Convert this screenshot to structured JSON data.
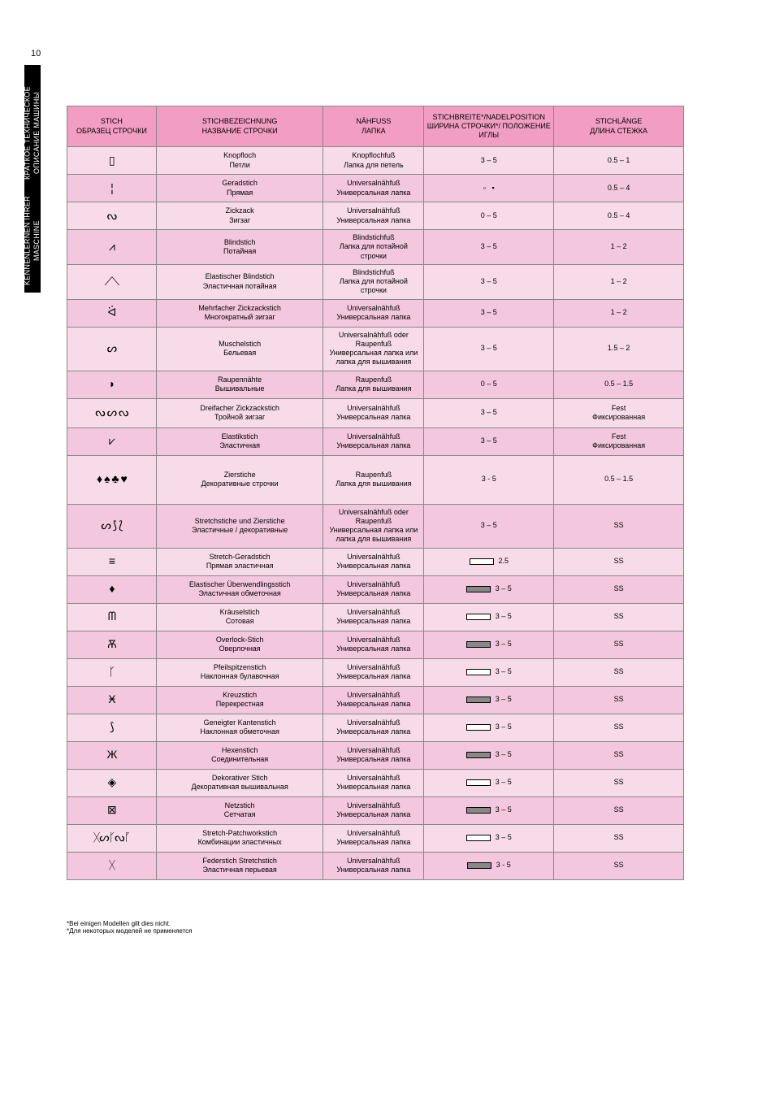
{
  "document": {
    "page_number": "10",
    "sidebar_label_de": "KENNENLERNEN IHRER MASCHINE",
    "sidebar_label_ru": "КРАТКОЕ ТЕХНИЧЕСКОЕ ОПИСАНИЕ МАШИНЫ"
  },
  "colors": {
    "header_bg": "#f29ec3",
    "row_dark": "#f3c8de",
    "row_light": "#f7dbe8",
    "border": "#888888",
    "sidebar_bg": "#000000",
    "sidebar_text": "#ffffff"
  },
  "table": {
    "headers": {
      "col1_de": "STICH",
      "col1_ru": "ОБРАЗЕЦ СТРОЧКИ",
      "col2_de": "STICHBEZEICHNUNG",
      "col2_ru": "НАЗВАНИЕ СТРОЧКИ",
      "col3_de": "NÄHFUSS",
      "col3_ru": "ЛАПКА",
      "col4_de": "STICHBREITE*/NADELPOSITION",
      "col4_ru": "ШИРИНА СТРОЧКИ*/ ПОЛОЖЕНИЕ ИГЛЫ",
      "col5_de": "STICHLÄNGE",
      "col5_ru": "ДЛИНА СТЕЖКА"
    },
    "rows": [
      {
        "icon": "▯",
        "name_de": "Knopfloch",
        "name_ru": "Петли",
        "foot_de": "Knopflochfuß",
        "foot_ru": "Лапка для петель",
        "width": "3 – 5",
        "length": "0.5 – 1",
        "rowClass": "row-odd",
        "h": "cell-sm"
      },
      {
        "icon": "¦",
        "name_de": "Geradstich",
        "name_ru": "Прямая",
        "foot_de": "Universalnähfuß",
        "foot_ru": "Универсальная лапка",
        "width_special": "left_center",
        "length": "0.5 – 4",
        "rowClass": "row-even",
        "h": "cell-sm"
      },
      {
        "icon": "ᔓ",
        "name_de": "Zickzack",
        "name_ru": "Зигзаг",
        "foot_de": "Universalnähfuß",
        "foot_ru": "Универсальная лапка",
        "width": "0 – 5",
        "length": "0.5 – 4",
        "rowClass": "row-odd",
        "h": "cell-sm"
      },
      {
        "icon": "⩘",
        "name_de": "Blindstich",
        "name_ru": "Потайная",
        "foot_de": "Blindstichfuß",
        "foot_ru": "Лапка для потайной строчки",
        "width": "3 – 5",
        "length": "1 – 2",
        "rowClass": "row-even",
        "h": "cell-sm"
      },
      {
        "icon": "⟋⟍",
        "name_de": "Elastischer Blindstich",
        "name_ru": "Эластичная потайная",
        "foot_de": "Blindstichfuß",
        "foot_ru": "Лапка для потайной строчки",
        "width": "3 – 5",
        "length": "1 – 2",
        "rowClass": "row-odd",
        "h": "cell-sm"
      },
      {
        "icon": "ᐛ",
        "name_de": "Mehrfacher Zickzackstich",
        "name_ru": "Многократный зигзаг",
        "foot_de": "Universalnähfuß",
        "foot_ru": "Универсальная лапка",
        "width": "3 – 5",
        "length": "1 – 2",
        "rowClass": "row-even",
        "h": "cell-sm"
      },
      {
        "icon": "ᔕ",
        "name_de": "Muschelstich",
        "name_ru": "Бельевая",
        "foot_de": "Universalnähfuß oder Raupenfuß",
        "foot_ru": "Универсальная лапка или лапка для вышивания",
        "width": "3 – 5",
        "length": "1.5 – 2",
        "rowClass": "row-odd",
        "h": "cell-sm"
      },
      {
        "icon": "◗",
        "name_de": "Raupennähte",
        "name_ru": "Вышивальные",
        "foot_de": "Raupenfuß",
        "foot_ru": "Лапка для вышивания",
        "width": "0 – 5",
        "length": "0.5 – 1.5",
        "rowClass": "row-even",
        "h": "cell-sm"
      },
      {
        "icon": "ᔓ ᔕ ᔓ",
        "name_de": "Dreifacher Zickzackstich",
        "name_ru": "Тройной зигзаг",
        "foot_de": "Universalnähfuß",
        "foot_ru": "Универсальная лапка",
        "width": "3 – 5",
        "length": "Fest",
        "length_ru": "Фиксированная",
        "rowClass": "row-odd",
        "h": "cell-med"
      },
      {
        "icon": "⩗",
        "name_de": "Elastikstich",
        "name_ru": "Эластичная",
        "foot_de": "Universalnähfuß",
        "foot_ru": "Универсальная лапка",
        "width": "3 – 5",
        "length": "Fest",
        "length_ru": "Фиксированная",
        "rowClass": "row-even",
        "h": "cell-sm"
      },
      {
        "icon": "♦ ♠ ♣ ♥",
        "name_de": "Zierstiche",
        "name_ru": "Декоративные строчки",
        "foot_de": "Raupenfuß",
        "foot_ru": "Лапка для вышивания",
        "width": "3 - 5",
        "length": "0.5 – 1.5",
        "rowClass": "row-odd",
        "h": "cell-big"
      },
      {
        "icon": "ᔕ ⟆ ⟅",
        "name_de": "Stretchstiche und Zierstiche",
        "name_ru": "Эластичные / декоративные",
        "foot_de": "Universalnähfuß oder Raupenfuß",
        "foot_ru": "Универсальная лапка или лапка для вышивания",
        "width": "3 – 5",
        "length": "SS",
        "length_ru": "",
        "rowClass": "row-even",
        "h": "cell-med"
      },
      {
        "icon": "≡",
        "name_de": "Stretch-Geradstich",
        "name_ru": "Прямая эластичная",
        "foot_de": "Universalnähfuß",
        "foot_ru": "Универсальная лапка",
        "width_box": true,
        "width": "2.5",
        "length": "SS",
        "length_ru": "",
        "rowClass": "row-odd",
        "h": "cell-sm"
      },
      {
        "icon": "♦",
        "name_de": "Elastischer Überwendlingsstich",
        "name_ru": "Эластичная обметочная",
        "foot_de": "Universalnähfuß",
        "foot_ru": "Универсальная лапка",
        "width_box": true,
        "boxDark": true,
        "width": "3 – 5",
        "length": "SS",
        "rowClass": "row-even",
        "h": "cell-sm"
      },
      {
        "icon": "ᗰ",
        "name_de": "Kräuselstich",
        "name_ru": "Сотовая",
        "foot_de": "Universalnähfuß",
        "foot_ru": "Универсальная лапка",
        "width_box": true,
        "width": "3 – 5",
        "length": "SS",
        "rowClass": "row-odd",
        "h": "cell-sm"
      },
      {
        "icon": "Ѫ",
        "name_de": "Overlock-Stich",
        "name_ru": "Оверлочная",
        "foot_de": "Universalnähfuß",
        "foot_ru": "Универсальная лапка",
        "width_box": true,
        "boxDark": true,
        "width": "3 – 5",
        "length": "SS",
        "rowClass": "row-even",
        "h": "cell-sm"
      },
      {
        "icon": "ᚴ",
        "name_de": "Pfeilspitzenstich",
        "name_ru": "Наклонная булавочная",
        "foot_de": "Universalnähfuß",
        "foot_ru": "Универсальная лапка",
        "width_box": true,
        "width": "3 – 5",
        "length": "SS",
        "rowClass": "row-odd",
        "h": "cell-sm"
      },
      {
        "icon": "Ӿ",
        "name_de": "Kreuzstich",
        "name_ru": "Перекрестная",
        "foot_de": "Universalnähfuß",
        "foot_ru": "Универсальная лапка",
        "width_box": true,
        "boxDark": true,
        "width": "3 – 5",
        "length": "SS",
        "rowClass": "row-even",
        "h": "cell-sm"
      },
      {
        "icon": "⟆",
        "name_de": "Geneigter Kantenstich",
        "name_ru": "Наклонная обметочная",
        "foot_de": "Universalnähfuß",
        "foot_ru": "Универсальная лапка",
        "width_box": true,
        "width": "3 – 5",
        "length": "SS",
        "rowClass": "row-odd",
        "h": "cell-sm"
      },
      {
        "icon": "Ж",
        "name_de": "Hexenstich",
        "name_ru": "Соединительная",
        "foot_de": "Universalnähfuß",
        "foot_ru": "Универсальная лапка",
        "width_box": true,
        "boxDark": true,
        "width": "3 – 5",
        "length": "SS",
        "rowClass": "row-even",
        "h": "cell-sm"
      },
      {
        "icon": "◈",
        "name_de": "Dekorativer Stich",
        "name_ru": "Декоративная вышивальная",
        "foot_de": "Universalnähfuß",
        "foot_ru": "Универсальная лапка",
        "width_box": true,
        "width": "3 – 5",
        "length": "SS",
        "rowClass": "row-odd",
        "h": "cell-sm"
      },
      {
        "icon": "⊠",
        "name_de": "Netzstich",
        "name_ru": "Сетчатая",
        "foot_de": "Universalnähfuß",
        "foot_ru": "Универсальная лапка",
        "width_box": true,
        "boxDark": true,
        "width": "3 – 5",
        "length": "SS",
        "rowClass": "row-even",
        "h": "cell-sm"
      },
      {
        "icon": "ᚷᔕᚴᔓᚵ",
        "name_de": "Stretch-Patchworkstich",
        "name_ru": "Комбинации эластичных",
        "foot_de": "Universalnähfuß",
        "foot_ru": "Универсальная лапка",
        "width_box": true,
        "width": "3 – 5",
        "length": "SS",
        "rowClass": "row-odd",
        "h": "cell-sm"
      },
      {
        "icon": "ᚷ",
        "name_de": "Federstich Stretchstich",
        "name_ru": "Эластичная перьевая",
        "foot_de": "Universalnähfuß",
        "foot_ru": "Универсальная лапка",
        "width_box": true,
        "boxDark": true,
        "width": "3 - 5",
        "length": "SS",
        "rowClass": "row-even",
        "h": "cell-sm"
      }
    ],
    "footnote_de": "*Bei einigen Modellen gilt dies nicht.",
    "footnote_ru": "*Для некоторых моделей не применяется"
  }
}
